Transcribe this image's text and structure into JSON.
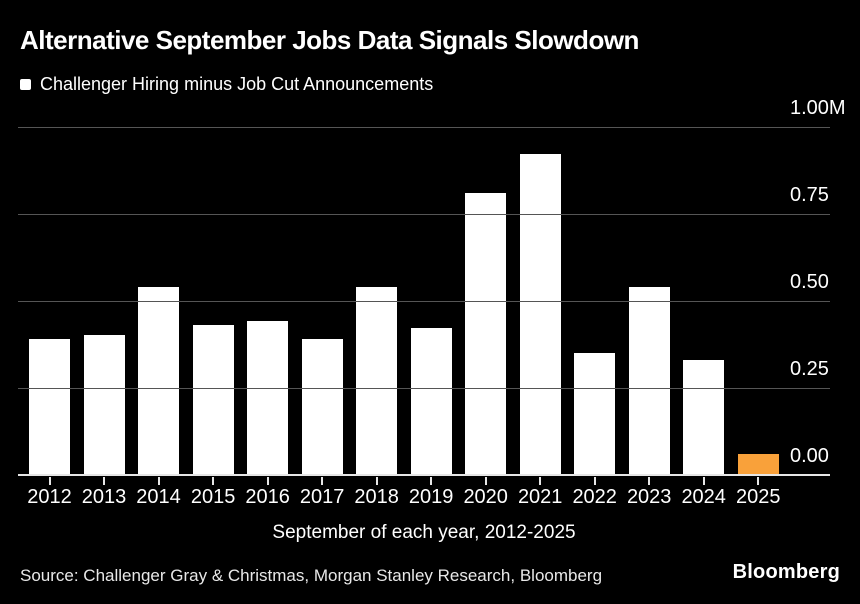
{
  "header": {
    "title": "Alternative September Jobs Data Signals Slowdown"
  },
  "legend": {
    "label": "Challenger Hiring minus Job Cut Announcements",
    "swatch_color": "#ffffff"
  },
  "chart_data": {
    "type": "bar",
    "title": "Alternative September Jobs Data Signals Slowdown",
    "series_name": "Challenger Hiring minus Job Cut Announcements",
    "unit": "M",
    "categories": [
      "2012",
      "2013",
      "2014",
      "2015",
      "2016",
      "2017",
      "2018",
      "2019",
      "2020",
      "2021",
      "2022",
      "2023",
      "2024",
      "2025"
    ],
    "values": [
      0.39,
      0.4,
      0.54,
      0.43,
      0.44,
      0.39,
      0.54,
      0.42,
      0.81,
      0.92,
      0.35,
      0.54,
      0.33,
      0.06
    ],
    "highlight_index": 13,
    "bar_color": "#ffffff",
    "highlight_color": "#f9a13a",
    "ylim": [
      0,
      1.0
    ],
    "yticks": [
      {
        "value": 0.0,
        "label": "0.00"
      },
      {
        "value": 0.25,
        "label": "0.25"
      },
      {
        "value": 0.5,
        "label": "0.50"
      },
      {
        "value": 0.75,
        "label": "0.75"
      },
      {
        "value": 1.0,
        "label": "1.00M"
      }
    ],
    "grid": true,
    "legend_position": "top-left",
    "xlabel": "September of each year, 2012-2025",
    "ylabel": ""
  },
  "footer": {
    "source": "Source: Challenger Gray & Christmas, Morgan Stanley Research, Bloomberg",
    "logo": "Bloomberg"
  },
  "colors": {
    "background": "#000000",
    "text": "#ffffff",
    "gridline": "#555555",
    "axis_line": "#e6e6e6",
    "accent": "#f9a13a"
  }
}
